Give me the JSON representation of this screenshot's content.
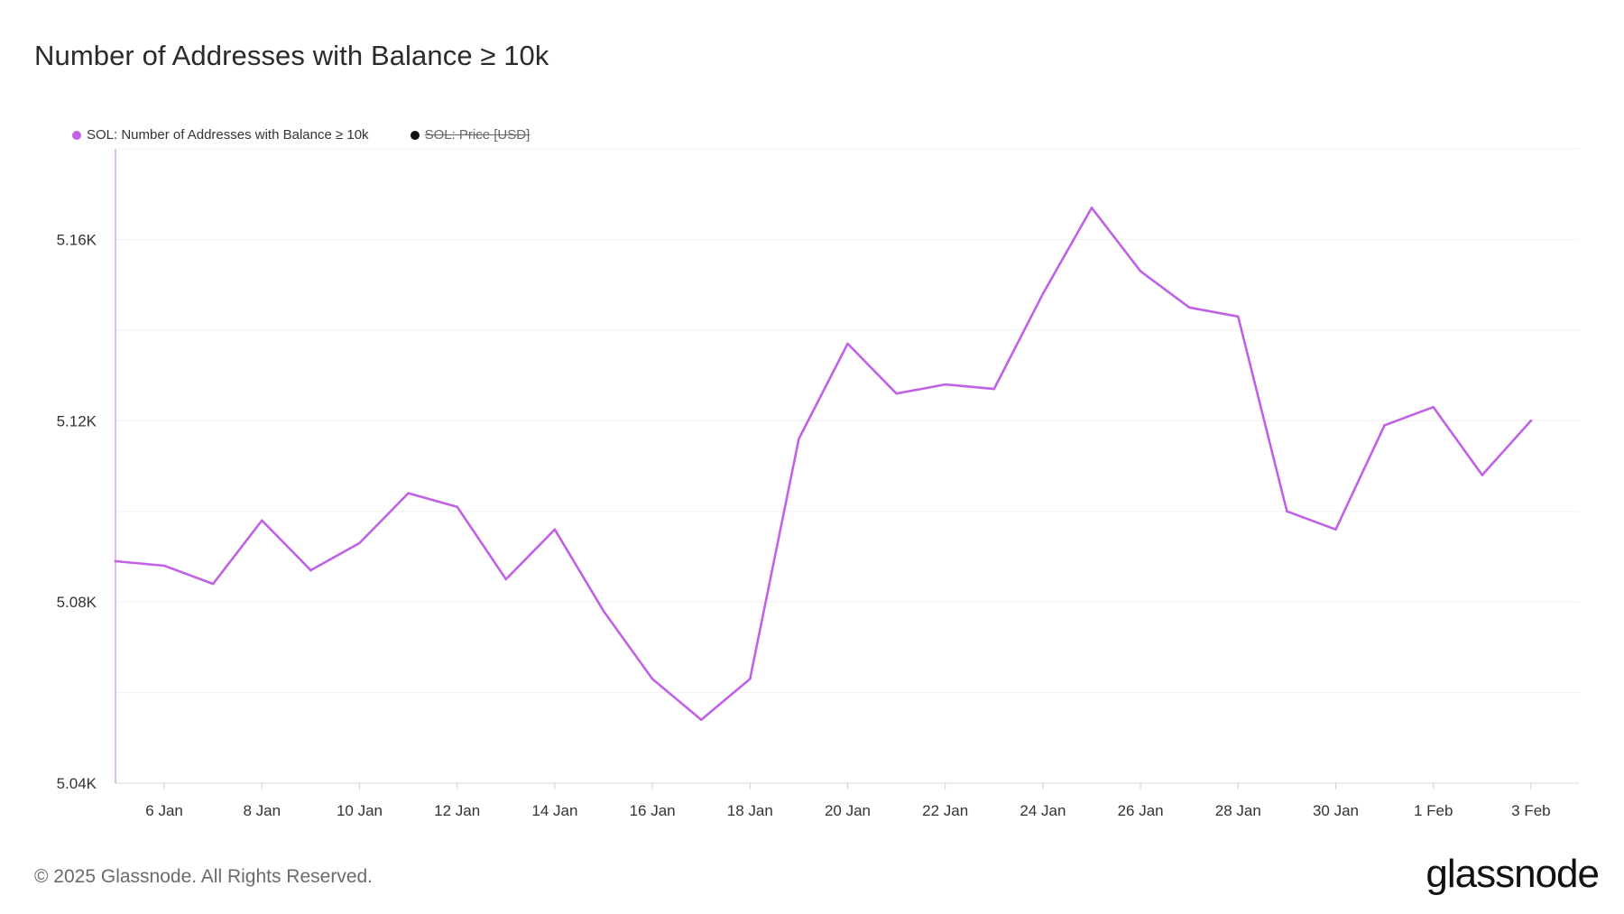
{
  "title": "Number of Addresses with Balance ≥ 10k",
  "legend": [
    {
      "label": "SOL: Number of Addresses with Balance ≥ 10k",
      "color": "#c061e6",
      "active": true
    },
    {
      "label": "SOL: Price [USD]",
      "color": "#111111",
      "active": false
    }
  ],
  "footer": "© 2025 Glassnode. All Rights Reserved.",
  "logo": "glassnode",
  "chart_data": {
    "type": "line",
    "x": [
      "5 Jan",
      "6 Jan",
      "7 Jan",
      "8 Jan",
      "9 Jan",
      "10 Jan",
      "11 Jan",
      "12 Jan",
      "13 Jan",
      "14 Jan",
      "15 Jan",
      "16 Jan",
      "17 Jan",
      "18 Jan",
      "19 Jan",
      "20 Jan",
      "21 Jan",
      "22 Jan",
      "23 Jan",
      "24 Jan",
      "25 Jan",
      "26 Jan",
      "27 Jan",
      "28 Jan",
      "29 Jan",
      "30 Jan",
      "31 Jan",
      "1 Feb",
      "2 Feb",
      "3 Feb"
    ],
    "series": [
      {
        "name": "SOL: Number of Addresses with Balance ≥ 10k",
        "values": [
          5089,
          5088,
          5084,
          5098,
          5087,
          5093,
          5104,
          5101,
          5085,
          5096,
          5078,
          5063,
          5054,
          5063,
          5116,
          5137,
          5126,
          5128,
          5127,
          5148,
          5167,
          5153,
          5145,
          5143,
          5100,
          5096,
          5119,
          5123,
          5108,
          5120
        ]
      }
    ],
    "x_ticks": [
      "6 Jan",
      "8 Jan",
      "10 Jan",
      "12 Jan",
      "14 Jan",
      "16 Jan",
      "18 Jan",
      "20 Jan",
      "22 Jan",
      "24 Jan",
      "26 Jan",
      "28 Jan",
      "30 Jan",
      "1 Feb",
      "3 Feb"
    ],
    "y_ticks": [
      {
        "value": 5040,
        "label": "5.04K"
      },
      {
        "value": 5080,
        "label": "5.08K"
      },
      {
        "value": 5120,
        "label": "5.12K"
      },
      {
        "value": 5160,
        "label": "5.16K"
      }
    ],
    "ylim": [
      5040,
      5180
    ],
    "grid": true,
    "line_color": "#c061e6"
  }
}
